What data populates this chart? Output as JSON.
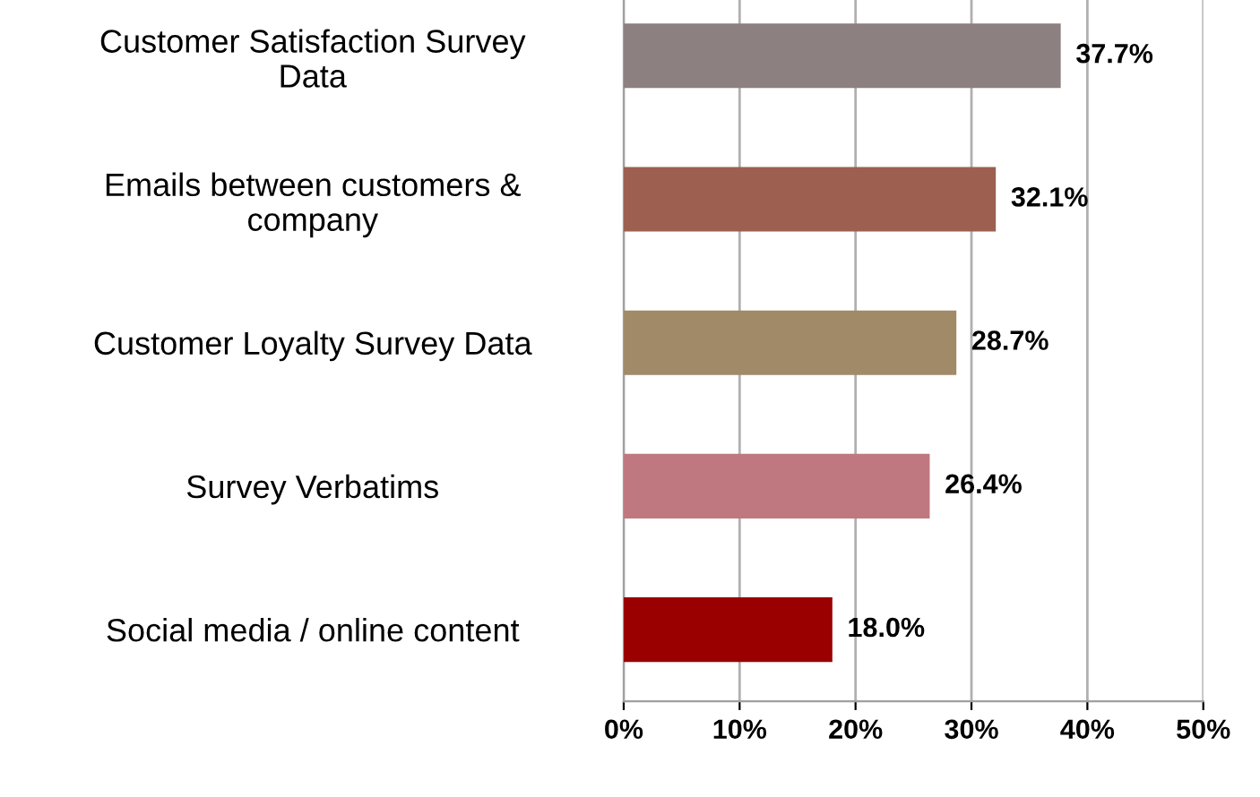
{
  "chart_data": {
    "type": "bar",
    "orientation": "horizontal",
    "categories": [
      "Customer Satisfaction Survey\nData",
      "Emails between customers &\ncompany",
      "Customer Loyalty Survey Data",
      "Survey Verbatims",
      "Social media / online content"
    ],
    "values": [
      37.7,
      32.1,
      28.7,
      26.4,
      18.0
    ],
    "value_labels": [
      "37.7%",
      "32.1%",
      "28.7%",
      "26.4%",
      "18.0%"
    ],
    "colors": [
      "#8c8080",
      "#9c5f50",
      "#a08a68",
      "#c07880",
      "#9b0000"
    ],
    "xlim": [
      0,
      50
    ],
    "xticks": [
      {
        "value": 0,
        "label": "0%"
      },
      {
        "value": 10,
        "label": "10%"
      },
      {
        "value": 20,
        "label": "20%"
      },
      {
        "value": 30,
        "label": "30%"
      },
      {
        "value": 40,
        "label": "40%"
      },
      {
        "value": 50,
        "label": "50%"
      }
    ],
    "grid": "x"
  }
}
